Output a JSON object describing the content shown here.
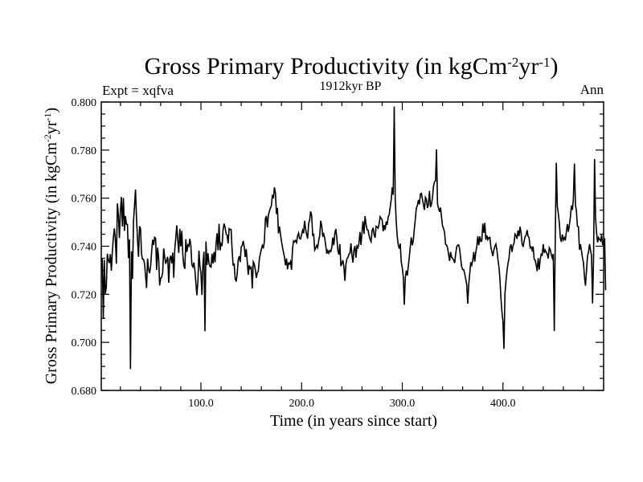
{
  "chart_data": {
    "type": "line",
    "title": "Gross Primary Productivity (in kgCm",
    "title_sup1": "-2",
    "title_mid": "yr",
    "title_sup2": "-1",
    "title_end": ")",
    "subtitle": "1912kyr BP",
    "left_label": "Expt = xqfva",
    "right_label": "Ann",
    "xlabel": "Time (in years since start)",
    "ylabel_main": "Gross Primary Productivity (in kgCm",
    "ylabel_sup1": "-2",
    "ylabel_mid": "yr",
    "ylabel_sup2": "-1",
    "ylabel_end": ")",
    "xlim": [
      1,
      500
    ],
    "ylim": [
      0.68,
      0.8
    ],
    "x_ticks": [
      100,
      200,
      300,
      400
    ],
    "x_tick_labels": [
      "100.0",
      "200.0",
      "300.0",
      "400.0"
    ],
    "y_ticks": [
      0.68,
      0.7,
      0.72,
      0.74,
      0.76,
      0.78,
      0.8
    ],
    "y_tick_labels": [
      "0.680",
      "0.700",
      "0.720",
      "0.740",
      "0.760",
      "0.780",
      "0.800"
    ],
    "grid": false,
    "series": [
      {
        "name": "Gross Primary Productivity",
        "color": "#000000",
        "x_start": 1,
        "x_step": 1,
        "values": [
          0.7338,
          0.7349,
          0.7098,
          0.7343,
          0.7203,
          0.7229,
          0.7369,
          0.7342,
          0.733,
          0.7367,
          0.7298,
          0.7377,
          0.7436,
          0.7474,
          0.7428,
          0.7327,
          0.7578,
          0.7533,
          0.7434,
          0.7546,
          0.7605,
          0.7482,
          0.7601,
          0.7464,
          0.7526,
          0.7491,
          0.7491,
          0.7351,
          0.7429,
          0.6889,
          0.7379,
          0.7264,
          0.7502,
          0.7566,
          0.7636,
          0.7518,
          0.7427,
          0.7356,
          0.7483,
          0.7474,
          0.7367,
          0.7346,
          0.7345,
          0.7327,
          0.7277,
          0.7226,
          0.7349,
          0.7303,
          0.7288,
          0.7316,
          0.7376,
          0.7427,
          0.7405,
          0.7437,
          0.7432,
          0.7301,
          0.7394,
          0.735,
          0.7237,
          0.7267,
          0.7271,
          0.7289,
          0.7391,
          0.7355,
          0.7327,
          0.7342,
          0.7356,
          0.7248,
          0.7345,
          0.7361,
          0.7329,
          0.7373,
          0.7269,
          0.7386,
          0.7434,
          0.7487,
          0.7424,
          0.7372,
          0.7472,
          0.7399,
          0.7464,
          0.7365,
          0.732,
          0.7306,
          0.7429,
          0.7376,
          0.7405,
          0.74,
          0.7431,
          0.7401,
          0.7323,
          0.7314,
          0.7332,
          0.7301,
          0.7245,
          0.7196,
          0.7255,
          0.7382,
          0.7317,
          0.7289,
          0.7197,
          0.7328,
          0.7377,
          0.7046,
          0.742,
          0.7322,
          0.7371,
          0.7329,
          0.7316,
          0.7313,
          0.7369,
          0.7328,
          0.7376,
          0.7333,
          0.7408,
          0.7454,
          0.7383,
          0.7493,
          0.7383,
          0.741,
          0.7401,
          0.7469,
          0.7494,
          0.7479,
          0.7451,
          0.7446,
          0.7412,
          0.7473,
          0.7469,
          0.7469,
          0.7383,
          0.7319,
          0.7328,
          0.7266,
          0.7253,
          0.7284,
          0.7343,
          0.7358,
          0.7334,
          0.7397,
          0.7403,
          0.7422,
          0.7398,
          0.7355,
          0.7389,
          0.7337,
          0.7281,
          0.7321,
          0.7307,
          0.7312,
          0.7224,
          0.7335,
          0.7327,
          0.7303,
          0.7268,
          0.7289,
          0.7296,
          0.7346,
          0.7369,
          0.7387,
          0.7403,
          0.7391,
          0.7419,
          0.7514,
          0.7526,
          0.7478,
          0.7529,
          0.7546,
          0.7559,
          0.7569,
          0.7614,
          0.7599,
          0.7645,
          0.7621,
          0.7534,
          0.7559,
          0.7453,
          0.7482,
          0.745,
          0.7421,
          0.7396,
          0.7374,
          0.7354,
          0.7321,
          0.7349,
          0.7304,
          0.733,
          0.7326,
          0.7336,
          0.7302,
          0.7391,
          0.7422,
          0.7418,
          0.7424,
          0.7415,
          0.7443,
          0.7455,
          0.7432,
          0.743,
          0.7448,
          0.7467,
          0.7454,
          0.7506,
          0.7471,
          0.7448,
          0.7432,
          0.7495,
          0.7509,
          0.7545,
          0.7527,
          0.7446,
          0.7449,
          0.7384,
          0.7392,
          0.7404,
          0.7394,
          0.7424,
          0.7445,
          0.7506,
          0.7484,
          0.7439,
          0.7451,
          0.7433,
          0.7402,
          0.7369,
          0.7382,
          0.7371,
          0.7382,
          0.7378,
          0.7395,
          0.7436,
          0.7404,
          0.7453,
          0.7472,
          0.7435,
          0.7382,
          0.7365,
          0.7409,
          0.7317,
          0.7328,
          0.7342,
          0.7315,
          0.7256,
          0.7324,
          0.7348,
          0.7353,
          0.7367,
          0.737,
          0.7412,
          0.7363,
          0.7332,
          0.7385,
          0.7401,
          0.7352,
          0.7401,
          0.7394,
          0.7413,
          0.7459,
          0.7405,
          0.7459,
          0.7504,
          0.7451,
          0.7525,
          0.7492,
          0.7469,
          0.7467,
          0.7445,
          0.7428,
          0.7419,
          0.7465,
          0.7477,
          0.7448,
          0.7435,
          0.7483,
          0.748,
          0.7475,
          0.7492,
          0.7523,
          0.7516,
          0.751,
          0.7462,
          0.7488,
          0.7468,
          0.7503,
          0.7489,
          0.7522,
          0.7531,
          0.7563,
          0.7593,
          0.7645,
          0.7614,
          0.7981,
          0.7594,
          0.7502,
          0.7441,
          0.7405,
          0.739,
          0.7411,
          0.7333,
          0.7311,
          0.7274,
          0.7156,
          0.7268,
          0.7299,
          0.7278,
          0.7317,
          0.7356,
          0.74,
          0.7437,
          0.7404,
          0.7425,
          0.7474,
          0.7514,
          0.756,
          0.7569,
          0.7592,
          0.7574,
          0.7617,
          0.762,
          0.7596,
          0.7574,
          0.7551,
          0.7604,
          0.7596,
          0.7559,
          0.7573,
          0.763,
          0.7563,
          0.7575,
          0.7602,
          0.7649,
          0.7668,
          0.7672,
          0.7803,
          0.7576,
          0.7558,
          0.7543,
          0.7561,
          0.7521,
          0.7484,
          0.7474,
          0.7458,
          0.7408,
          0.7405,
          0.7393,
          0.7368,
          0.7339,
          0.7376,
          0.7354,
          0.735,
          0.7343,
          0.733,
          0.7366,
          0.7397,
          0.7404,
          0.7406,
          0.7388,
          0.735,
          0.7315,
          0.7303,
          0.7303,
          0.7286,
          0.7264,
          0.7241,
          0.7161,
          0.724,
          0.7285,
          0.7333,
          0.7321,
          0.7341,
          0.7376,
          0.7336,
          0.7375,
          0.7398,
          0.7442,
          0.7404,
          0.7441,
          0.742,
          0.7422,
          0.7494,
          0.7456,
          0.7497,
          0.7427,
          0.7445,
          0.7427,
          0.7436,
          0.7437,
          0.7397,
          0.7376,
          0.7359,
          0.7385,
          0.7399,
          0.7409,
          0.7385,
          0.7345,
          0.7315,
          0.7264,
          0.7185,
          0.7126,
          0.7088,
          0.6973,
          0.7203,
          0.7254,
          0.7297,
          0.7328,
          0.7349,
          0.7395,
          0.7408,
          0.7376,
          0.7402,
          0.7412,
          0.7451,
          0.7445,
          0.7431,
          0.7466,
          0.7442,
          0.7481,
          0.7456,
          0.741,
          0.7397,
          0.7421,
          0.744,
          0.7446,
          0.7467,
          0.7441,
          0.7435,
          0.7393,
          0.7397,
          0.7383,
          0.7399,
          0.7346,
          0.7342,
          0.7323,
          0.7296,
          0.7351,
          0.7303,
          0.7345,
          0.7367,
          0.7363,
          0.7409,
          0.7372,
          0.7384,
          0.7375,
          0.7367,
          0.7349,
          0.7394,
          0.7386,
          0.7365,
          0.7351,
          0.7368,
          0.7047,
          0.7442,
          0.7747,
          0.7567,
          0.7536,
          0.7498,
          0.7436,
          0.7418,
          0.7449,
          0.7426,
          0.7436,
          0.7424,
          0.746,
          0.7492,
          0.746,
          0.7488,
          0.7522,
          0.7569,
          0.7551,
          0.7601,
          0.7744,
          0.7574,
          0.7545,
          0.7483,
          0.7481,
          0.7385,
          0.7408,
          0.7381,
          0.7352,
          0.7331,
          0.7271,
          0.7236,
          0.7299,
          0.7359,
          0.7376,
          0.7409,
          0.7382,
          0.7362,
          0.7162,
          0.7347,
          0.7763,
          0.7518,
          0.7457,
          0.7416,
          0.7436,
          0.7428,
          0.7422,
          0.7447,
          0.7405,
          0.7421,
          0.7433,
          0.7217
        ]
      }
    ]
  }
}
